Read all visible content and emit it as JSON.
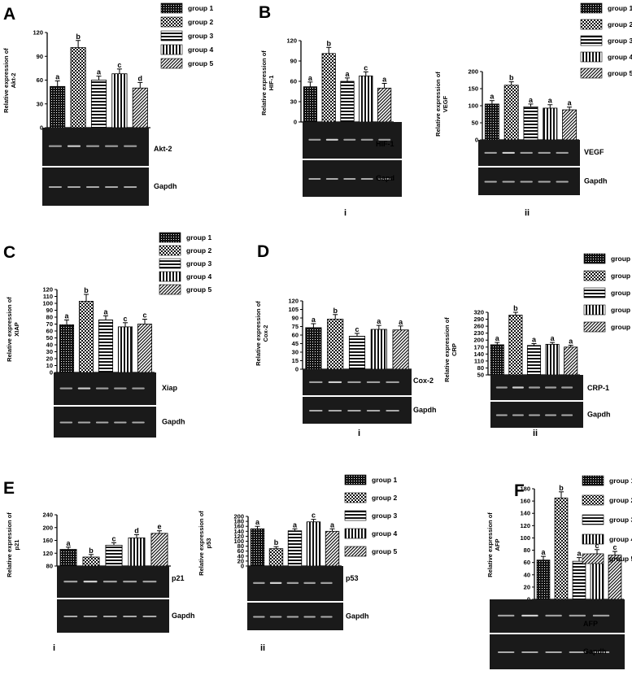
{
  "legend_groups": [
    "group 1",
    "group 2",
    "group 3",
    "group 4",
    "group 5"
  ],
  "chart_data": [
    {
      "type": "bar",
      "panel_label": "A",
      "sub_label": "",
      "ylabel": "Relative expression of Akt-2",
      "categories": [
        "group 1",
        "group 2",
        "group 3",
        "group 4",
        "group 5"
      ],
      "values": [
        52,
        101,
        60,
        68,
        50
      ],
      "errors": [
        7,
        9,
        5,
        6,
        7
      ],
      "sig": [
        "a",
        "b",
        "a",
        "c",
        "d"
      ],
      "ylim": [
        0,
        120
      ],
      "yticks": [
        "0",
        "30",
        "60",
        "90",
        "120"
      ],
      "blot": [
        "Akt-2",
        "Gapdh"
      ],
      "legend": "right"
    },
    {
      "type": "bar",
      "panel_label": "B",
      "sub_label": "i",
      "ylabel": "Relative expression of HIF-1",
      "categories": [
        "group 1",
        "group 2",
        "group 3",
        "group 4",
        "group 5"
      ],
      "values": [
        52,
        101,
        60,
        68,
        50
      ],
      "errors": [
        7,
        9,
        5,
        6,
        7
      ],
      "sig": [
        "a",
        "b",
        "a",
        "c",
        "a"
      ],
      "ylim": [
        0,
        120
      ],
      "yticks": [
        "0",
        "30",
        "60",
        "90",
        "120"
      ],
      "blot": [
        "HIF-1",
        "Gapd"
      ],
      "legend": "none"
    },
    {
      "type": "bar",
      "panel_label": "",
      "sub_label": "ii",
      "ylabel": "Relative expression of VEGF",
      "categories": [
        "group 1",
        "group 2",
        "group 3",
        "group 4",
        "group 5"
      ],
      "values": [
        105,
        160,
        97,
        93,
        88
      ],
      "errors": [
        10,
        10,
        8,
        10,
        8
      ],
      "sig": [
        "a",
        "b",
        "a",
        "a",
        "a"
      ],
      "ylim": [
        0,
        200
      ],
      "yticks": [
        "0",
        "50",
        "100",
        "150",
        "200"
      ],
      "blot": [
        "VEGF",
        "Gapdh"
      ],
      "legend": "right"
    },
    {
      "type": "bar",
      "panel_label": "C",
      "sub_label": "",
      "ylabel": "Relative expression of XIAP",
      "categories": [
        "group 1",
        "group 2",
        "group 3",
        "group 4",
        "group 5"
      ],
      "values": [
        69,
        103,
        76,
        66,
        70
      ],
      "errors": [
        7,
        10,
        6,
        6,
        7
      ],
      "sig": [
        "a",
        "b",
        "a",
        "c",
        "c"
      ],
      "ylim": [
        0,
        120
      ],
      "yticks": [
        "0",
        "10",
        "20",
        "30",
        "40",
        "50",
        "60",
        "70",
        "80",
        "90",
        "100",
        "110",
        "120"
      ],
      "blot": [
        "Xiap",
        "Gapdh"
      ],
      "legend": "right"
    },
    {
      "type": "bar",
      "panel_label": "D",
      "sub_label": "i",
      "ylabel": "Relative expression of Cox-2",
      "categories": [
        "group 1",
        "group 2",
        "group 3",
        "group 4",
        "group 5"
      ],
      "values": [
        73,
        88,
        58,
        70,
        69
      ],
      "errors": [
        7,
        8,
        5,
        7,
        7
      ],
      "sig": [
        "a",
        "b",
        "c",
        "a",
        "a"
      ],
      "ylim": [
        0,
        120
      ],
      "yticks": [
        "0",
        "15",
        "30",
        "45",
        "60",
        "75",
        "90",
        "105",
        "120"
      ],
      "blot": [
        "Cox-2",
        "Gapdh"
      ],
      "legend": "none"
    },
    {
      "type": "bar",
      "panel_label": "",
      "sub_label": "ii",
      "ylabel": "Relative expression of CRP",
      "categories": [
        "group 1",
        "group 2",
        "group 3",
        "group 4",
        "group 5"
      ],
      "values": [
        180,
        308,
        177,
        182,
        170
      ],
      "errors": [
        10,
        12,
        8,
        8,
        8
      ],
      "sig": [
        "a",
        "b",
        "a",
        "a",
        "a"
      ],
      "ylim": [
        50,
        320
      ],
      "yticks": [
        "50",
        "80",
        "110",
        "140",
        "170",
        "200",
        "230",
        "260",
        "290",
        "320"
      ],
      "blot": [
        "CRP-1",
        "Gapdh"
      ],
      "legend": "right"
    },
    {
      "type": "bar",
      "panel_label": "E",
      "sub_label": "i",
      "ylabel": "Relative expression of p21",
      "categories": [
        "group 1",
        "group 2",
        "group 3",
        "group 4",
        "group 5"
      ],
      "values": [
        132,
        108,
        145,
        168,
        182
      ],
      "errors": [
        7,
        8,
        8,
        10,
        8
      ],
      "sig": [
        "a",
        "b",
        "c",
        "d",
        "e"
      ],
      "ylim": [
        80,
        240
      ],
      "yticks": [
        "80",
        "120",
        "160",
        "200",
        "240"
      ],
      "blot": [
        "p21",
        "Gapdh"
      ],
      "legend": "none"
    },
    {
      "type": "bar",
      "panel_label": "",
      "sub_label": "ii",
      "ylabel": "Relative expression of p53",
      "categories": [
        "group 1",
        "group 2",
        "group 3",
        "group 4",
        "group 5"
      ],
      "values": [
        150,
        70,
        142,
        178,
        140
      ],
      "errors": [
        10,
        8,
        8,
        10,
        10
      ],
      "sig": [
        "a",
        "b",
        "a",
        "c",
        "a"
      ],
      "ylim": [
        0,
        200
      ],
      "yticks": [
        "0",
        "20",
        "40",
        "60",
        "80",
        "100",
        "120",
        "140",
        "160",
        "180",
        "200"
      ],
      "blot": [
        "p53",
        "Gapdh"
      ],
      "legend": "right"
    },
    {
      "type": "bar",
      "panel_label": "F",
      "sub_label": "",
      "ylabel": "Relative expression of AFP",
      "categories": [
        "group 1",
        "group 2",
        "group 3",
        "group 4",
        "group 5"
      ],
      "values": [
        64,
        165,
        62,
        74,
        72
      ],
      "errors": [
        6,
        10,
        6,
        7,
        6
      ],
      "sig": [
        "a",
        "b",
        "a",
        "c",
        "c"
      ],
      "ylim": [
        0,
        180
      ],
      "yticks": [
        "0",
        "20",
        "40",
        "60",
        "80",
        "100",
        "120",
        "140",
        "160",
        "180"
      ],
      "blot": [
        "AFP",
        "Gapdh"
      ],
      "legend": "right"
    }
  ]
}
